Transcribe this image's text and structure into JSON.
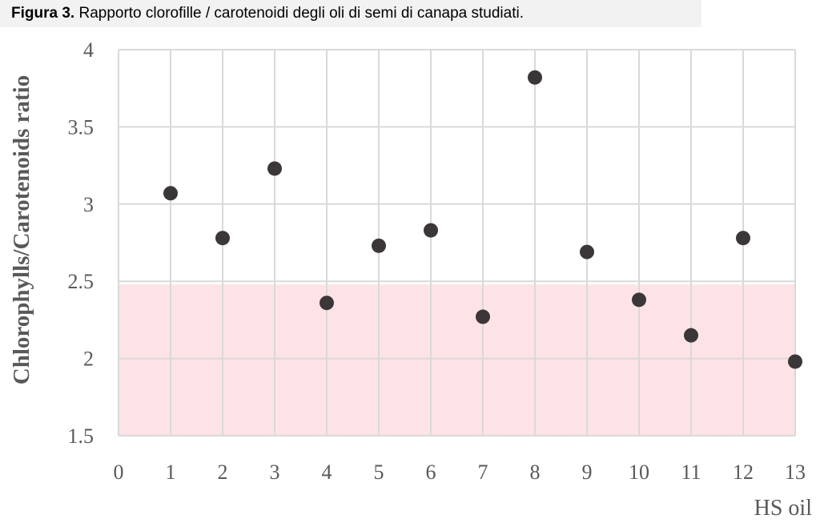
{
  "caption": {
    "label": "Figura 3.",
    "text": " Rapporto clorofille / carotenoidi degli oli di semi di canapa studiati."
  },
  "chart_data": {
    "type": "scatter",
    "xlabel": "HS oil",
    "ylabel": "Chlorophylls/Carotenoids ratio",
    "xlim": [
      0,
      13
    ],
    "ylim": [
      1.5,
      4
    ],
    "x_ticks": [
      "0",
      "1",
      "2",
      "3",
      "4",
      "5",
      "6",
      "7",
      "8",
      "9",
      "10",
      "11",
      "12",
      "13"
    ],
    "y_ticks": [
      "1.5",
      "2",
      "2.5",
      "3",
      "3.5",
      "4"
    ],
    "grid": true,
    "highlight_band": {
      "y_from": 1.5,
      "y_to": 2.48,
      "color": "#fde3e6"
    },
    "colors": {
      "grid": "#d9d9d9",
      "point": "#3b3638",
      "tick_text": "#595959"
    },
    "series": [
      {
        "x": [
          1,
          2,
          3,
          4,
          5,
          6,
          7,
          8,
          9,
          10,
          11,
          12,
          13
        ],
        "y": [
          3.07,
          2.78,
          3.23,
          2.36,
          2.73,
          2.83,
          2.27,
          3.82,
          2.69,
          2.38,
          2.15,
          2.78,
          1.98
        ]
      }
    ]
  }
}
